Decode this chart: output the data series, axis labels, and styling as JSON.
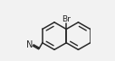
{
  "bg_color": "#f2f2f2",
  "line_color": "#2a2a2a",
  "text_color": "#2a2a2a",
  "br_label": "Br",
  "n_label": "N",
  "line_width": 1.1,
  "font_size": 6.5
}
